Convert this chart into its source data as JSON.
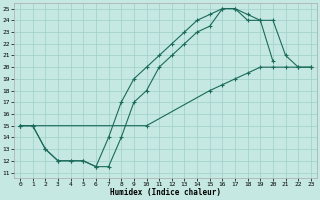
{
  "bg_color": "#c5e8e2",
  "grid_color": "#9ecfc8",
  "line_color": "#1a6b5a",
  "xlabel": "Humidex (Indice chaleur)",
  "xlim": [
    -0.5,
    23.5
  ],
  "ylim": [
    10.5,
    25.5
  ],
  "xticks": [
    0,
    1,
    2,
    3,
    4,
    5,
    6,
    7,
    8,
    9,
    10,
    11,
    12,
    13,
    14,
    15,
    16,
    17,
    18,
    19,
    20,
    21,
    22,
    23
  ],
  "yticks": [
    11,
    12,
    13,
    14,
    15,
    16,
    17,
    18,
    19,
    20,
    21,
    22,
    23,
    24,
    25
  ],
  "line1_x": [
    0,
    1,
    2,
    3,
    4,
    5,
    6,
    7,
    8,
    9,
    10,
    11,
    12,
    13,
    14,
    15,
    16,
    17,
    18,
    19,
    20,
    21,
    22,
    23
  ],
  "line1_y": [
    15,
    15,
    13,
    12,
    12,
    12,
    11.5,
    14,
    17,
    19,
    20,
    21,
    22,
    23,
    24,
    24.5,
    25,
    25,
    24,
    24,
    24,
    21,
    20,
    20
  ],
  "line2_x": [
    0,
    1,
    2,
    3,
    4,
    5,
    6,
    7,
    8,
    9,
    10,
    11,
    12,
    13,
    14,
    15,
    16,
    17,
    18,
    19,
    20
  ],
  "line2_y": [
    15,
    15,
    13,
    12,
    12,
    12,
    11.5,
    11.5,
    14,
    17,
    18,
    20,
    21,
    22,
    23,
    23.5,
    25,
    25,
    24.5,
    24,
    20.5
  ],
  "line3_x": [
    0,
    1,
    10,
    15,
    16,
    17,
    18,
    19,
    20,
    21,
    22,
    23
  ],
  "line3_y": [
    15,
    15,
    15,
    18,
    18.5,
    19,
    19.5,
    20,
    20,
    20,
    20,
    20
  ]
}
